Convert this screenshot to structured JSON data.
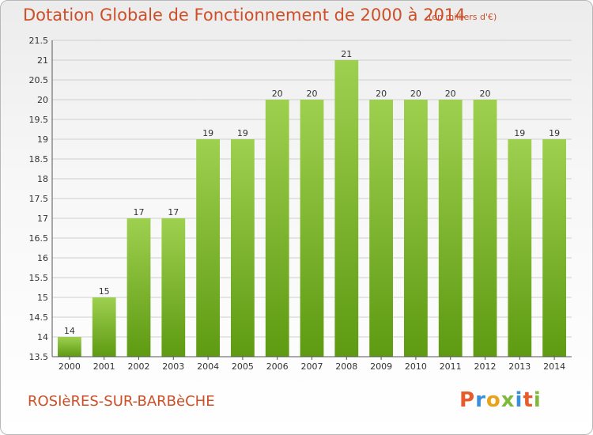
{
  "header": {
    "title": "Dotation Globale de Fonctionnement de 2000 à 2014",
    "unit": "(en milliers d'€)"
  },
  "footer": {
    "town": "ROSIèRES-SUR-BARBèCHE",
    "logo": "Proxiti"
  },
  "colors": {
    "title": "#cc4f28",
    "bar_top": "#9ed04f",
    "bar_bottom": "#5e9a12",
    "grid": "#cfcfcf",
    "logo_letters": [
      "#e85b2a",
      "#3a8fd9",
      "#e8a21b",
      "#7fb93c",
      "#3a8fd9",
      "#e85b2a",
      "#7fb93c"
    ]
  },
  "chart_data": {
    "type": "bar",
    "title": "Dotation Globale de Fonctionnement de 2000 à 2014",
    "xlabel": "",
    "ylabel": "",
    "categories": [
      "2000",
      "2001",
      "2002",
      "2003",
      "2004",
      "2005",
      "2006",
      "2007",
      "2008",
      "2009",
      "2010",
      "2011",
      "2012",
      "2013",
      "2014"
    ],
    "values": [
      14,
      15,
      17,
      17,
      19,
      19,
      20,
      20,
      21,
      20,
      20,
      20,
      20,
      19,
      19
    ],
    "data_labels": [
      "14",
      "15",
      "17",
      "17",
      "19",
      "19",
      "20",
      "20",
      "21",
      "20",
      "20",
      "20",
      "20",
      "19",
      "19"
    ],
    "ylim": [
      13.5,
      21.5
    ],
    "yticks": [
      "13.5",
      "14",
      "14.5",
      "15",
      "15.5",
      "16",
      "16.5",
      "17",
      "17.5",
      "18",
      "18.5",
      "19",
      "19.5",
      "20",
      "20.5",
      "21",
      "21.5"
    ],
    "grid": true,
    "legend": "none"
  }
}
